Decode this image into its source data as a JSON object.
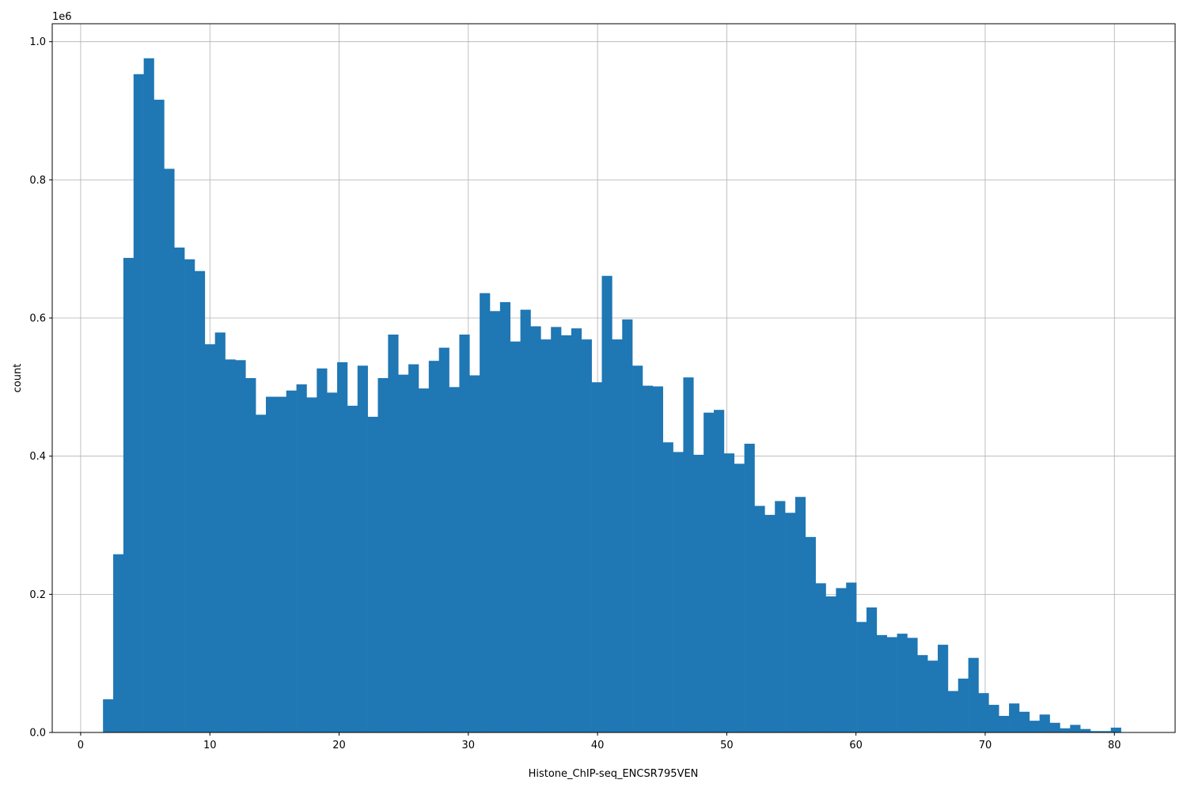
{
  "chart_data": {
    "type": "bar",
    "subtype": "histogram",
    "xlabel": "Histone_ChIP-seq_ENCSR795VEN",
    "ylabel": "count",
    "y_offset_label": "1e6",
    "xlim": [
      -2.2,
      84.7
    ],
    "ylim": [
      0,
      1.026
    ],
    "y_unit_multiplier": 1000000,
    "grid": true,
    "bar_color": "#1f77b4",
    "bin_start": 1.73,
    "bin_width": 0.7878,
    "x_ticks": [
      "0",
      "10",
      "20",
      "30",
      "40",
      "50",
      "60",
      "70",
      "80"
    ],
    "x_tick_values": [
      0,
      10,
      20,
      30,
      40,
      50,
      60,
      70,
      80
    ],
    "y_ticks": [
      "0.0",
      "0.2",
      "0.4",
      "0.6",
      "0.8",
      "1.0"
    ],
    "y_tick_values": [
      0,
      0.2,
      0.4,
      0.6,
      0.8,
      1.0
    ],
    "values": [
      0.048,
      0.258,
      0.687,
      0.953,
      0.976,
      0.916,
      0.816,
      0.702,
      0.685,
      0.668,
      0.562,
      0.579,
      0.54,
      0.539,
      0.513,
      0.46,
      0.486,
      0.486,
      0.495,
      0.504,
      0.485,
      0.527,
      0.492,
      0.536,
      0.473,
      0.531,
      0.457,
      0.513,
      0.576,
      0.518,
      0.533,
      0.498,
      0.538,
      0.557,
      0.5,
      0.576,
      0.517,
      0.636,
      0.61,
      0.623,
      0.566,
      0.612,
      0.588,
      0.569,
      0.587,
      0.575,
      0.585,
      0.569,
      0.507,
      0.661,
      0.569,
      0.598,
      0.531,
      0.502,
      0.501,
      0.42,
      0.406,
      0.514,
      0.402,
      0.463,
      0.467,
      0.404,
      0.389,
      0.418,
      0.328,
      0.315,
      0.335,
      0.318,
      0.341,
      0.283,
      0.216,
      0.197,
      0.209,
      0.217,
      0.16,
      0.181,
      0.141,
      0.138,
      0.143,
      0.137,
      0.112,
      0.104,
      0.127,
      0.06,
      0.078,
      0.108,
      0.057,
      0.04,
      0.024,
      0.042,
      0.03,
      0.017,
      0.026,
      0.014,
      0.006,
      0.011,
      0.005,
      0.002,
      0.002,
      0.007
    ]
  }
}
